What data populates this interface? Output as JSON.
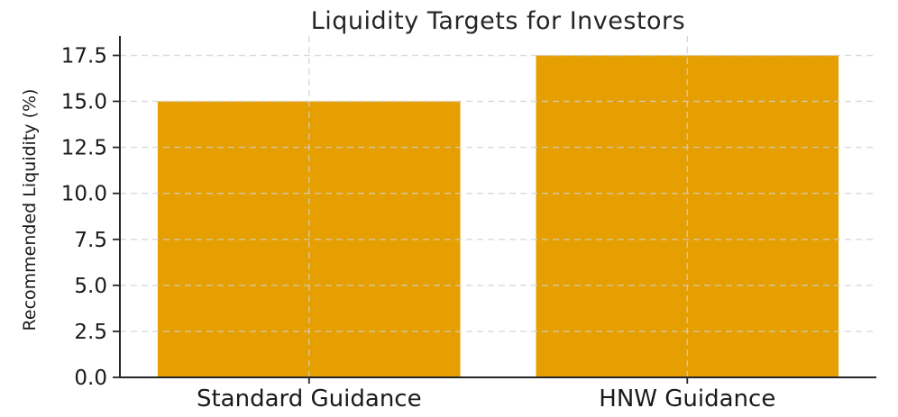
{
  "chart_data": {
    "type": "bar",
    "title": "Liquidity Targets for Investors",
    "xlabel": "",
    "ylabel": "Recommended Liquidity (%)",
    "categories": [
      "Standard Guidance",
      "HNW Guidance"
    ],
    "values": [
      15.0,
      17.5
    ],
    "ytick_labels": [
      "0.0",
      "2.5",
      "5.0",
      "7.5",
      "10.0",
      "12.5",
      "15.0",
      "17.5"
    ],
    "yticks": [
      0.0,
      2.5,
      5.0,
      7.5,
      10.0,
      12.5,
      15.0,
      17.5
    ],
    "ylim": [
      0,
      18.55
    ],
    "xlim": [
      -0.5,
      1.5
    ],
    "bar_width_fraction": 0.8,
    "bar_color": "#E69F00",
    "grid": {
      "visible": true,
      "style": "dashed",
      "color": "#cfcfcf"
    },
    "axis_color": "#262626",
    "tick_label_color": "#1a1a1a",
    "background_color": "#ffffff",
    "legend_position": "none"
  }
}
